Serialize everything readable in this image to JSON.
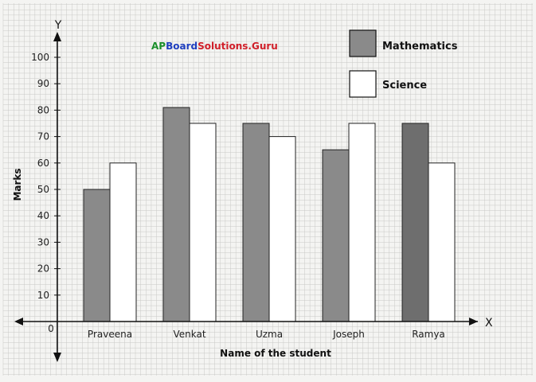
{
  "watermark": {
    "part1": "AP",
    "part2": "Board",
    "part3": "Solutions.Guru"
  },
  "colors": {
    "mathematics": "#8a8a8a",
    "science": "#ffffff",
    "grid": "#c9c9c6",
    "axis": "#111111",
    "wm_green": "#1a8f2a",
    "wm_blue": "#1f3fbf",
    "wm_red": "#d0202a"
  },
  "chart_data": {
    "type": "bar",
    "title": "",
    "xlabel": "Name of the student",
    "ylabel": "Marks",
    "x_axis_letter": "X",
    "y_axis_letter": "Y",
    "origin_label": "0",
    "categories": [
      "Praveena",
      "Venkat",
      "Uzma",
      "Joseph",
      "Ramya"
    ],
    "series": [
      {
        "name": "Mathematics",
        "values": [
          50,
          81,
          75,
          65,
          75
        ]
      },
      {
        "name": "Science",
        "values": [
          60,
          75,
          70,
          75,
          60
        ]
      }
    ],
    "yticks": [
      10,
      20,
      30,
      40,
      50,
      60,
      70,
      80,
      90,
      100
    ],
    "ylim": [
      0,
      100
    ],
    "grid": true,
    "legend_position": "top-right"
  }
}
